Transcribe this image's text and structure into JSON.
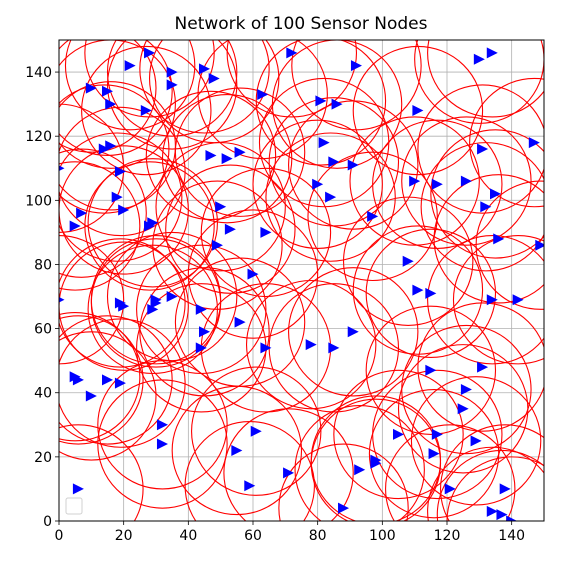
{
  "chart_data": {
    "type": "scatter",
    "title": "Network of 100 Sensor Nodes",
    "xlabel": "",
    "ylabel": "",
    "xlim": [
      0,
      150
    ],
    "ylim": [
      0,
      150
    ],
    "xticks": [
      "0",
      "20",
      "40",
      "60",
      "80",
      "100",
      "120",
      "140"
    ],
    "yticks": [
      "0",
      "20",
      "40",
      "60",
      "80",
      "100",
      "120",
      "140"
    ],
    "grid": true,
    "legend": "lower-left (empty)",
    "marker": "triangle-right",
    "marker_color": "#0000ff",
    "range_circle_color": "#ff0000",
    "sensing_radius": 20,
    "points": [
      [
        6,
        10
      ],
      [
        0,
        69
      ],
      [
        0,
        110
      ],
      [
        5,
        45
      ],
      [
        6,
        44
      ],
      [
        10,
        39
      ],
      [
        15,
        44
      ],
      [
        19,
        43
      ],
      [
        22,
        142
      ],
      [
        10,
        135
      ],
      [
        16,
        130
      ],
      [
        15,
        134
      ],
      [
        28,
        146
      ],
      [
        35,
        140
      ],
      [
        35,
        136
      ],
      [
        27,
        128
      ],
      [
        14,
        116
      ],
      [
        16,
        117
      ],
      [
        19,
        109
      ],
      [
        18,
        101
      ],
      [
        20,
        97
      ],
      [
        7,
        96
      ],
      [
        5,
        92
      ],
      [
        28,
        92
      ],
      [
        29,
        93
      ],
      [
        19,
        68
      ],
      [
        20,
        67
      ],
      [
        30,
        68
      ],
      [
        30,
        69
      ],
      [
        35,
        70
      ],
      [
        29,
        66
      ],
      [
        45,
        59
      ],
      [
        44,
        66
      ],
      [
        44,
        54
      ],
      [
        47,
        114
      ],
      [
        52,
        113
      ],
      [
        56,
        115
      ],
      [
        53,
        91
      ],
      [
        50,
        98
      ],
      [
        49,
        86
      ],
      [
        45,
        141
      ],
      [
        48,
        138
      ],
      [
        63,
        133
      ],
      [
        72,
        146
      ],
      [
        81,
        131
      ],
      [
        86,
        130
      ],
      [
        92,
        142
      ],
      [
        82,
        118
      ],
      [
        85,
        112
      ],
      [
        91,
        111
      ],
      [
        80,
        105
      ],
      [
        84,
        101
      ],
      [
        97,
        95
      ],
      [
        64,
        90
      ],
      [
        60,
        77
      ],
      [
        64,
        54
      ],
      [
        56,
        62
      ],
      [
        78,
        55
      ],
      [
        85,
        54
      ],
      [
        91,
        59
      ],
      [
        32,
        30
      ],
      [
        32,
        24
      ],
      [
        55,
        22
      ],
      [
        61,
        28
      ],
      [
        59,
        11
      ],
      [
        71,
        15
      ],
      [
        88,
        4
      ],
      [
        93,
        16
      ],
      [
        98,
        19
      ],
      [
        105,
        27
      ],
      [
        108,
        81
      ],
      [
        111,
        72
      ],
      [
        115,
        71
      ],
      [
        111,
        128
      ],
      [
        110,
        106
      ],
      [
        117,
        105
      ],
      [
        126,
        106
      ],
      [
        131,
        116
      ],
      [
        130,
        144
      ],
      [
        134,
        146
      ],
      [
        135,
        102
      ],
      [
        132,
        98
      ],
      [
        136,
        88
      ],
      [
        147,
        118
      ],
      [
        149,
        86
      ],
      [
        134,
        69
      ],
      [
        142,
        69
      ],
      [
        115,
        47
      ],
      [
        126,
        41
      ],
      [
        131,
        48
      ],
      [
        117,
        27
      ],
      [
        116,
        21
      ],
      [
        125,
        35
      ],
      [
        129,
        25
      ],
      [
        121,
        10
      ],
      [
        138,
        10
      ],
      [
        134,
        3
      ],
      [
        137,
        2
      ],
      [
        140,
        0
      ],
      [
        98,
        18
      ]
    ]
  }
}
